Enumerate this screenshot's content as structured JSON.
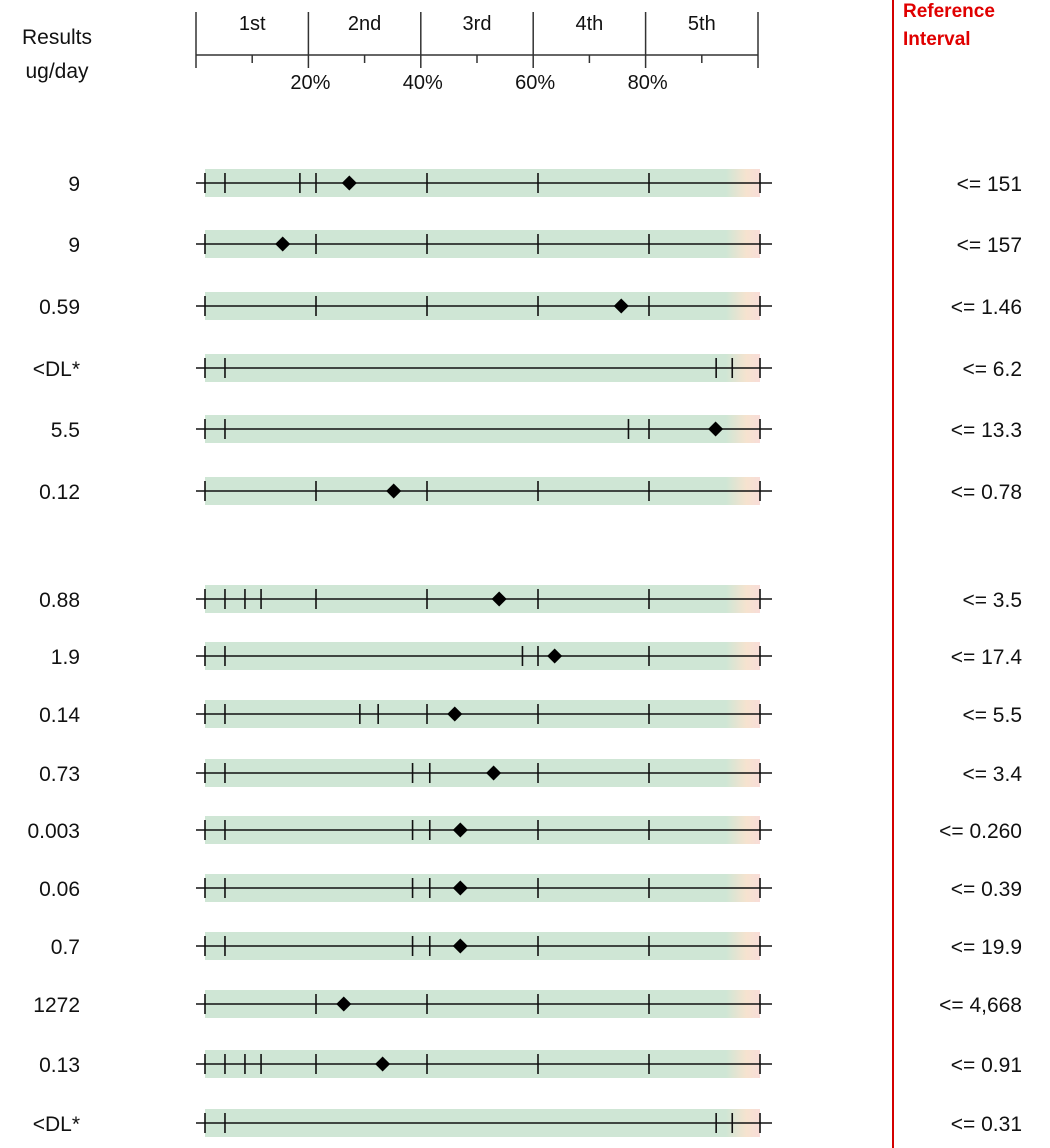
{
  "header": {
    "results_line1": "Results",
    "results_line2": "ug/day",
    "reference_line1": "Reference",
    "reference_line2": "Interval"
  },
  "colors": {
    "band": "#cfe6d5",
    "band_tail": "#f6e3cf",
    "reference_divider": "#d40000",
    "reference_text": "#e00000",
    "marker": "#000000"
  },
  "chart_data": {
    "type": "table",
    "quintile_labels": [
      "1st",
      "2nd",
      "3rd",
      "4th",
      "5th"
    ],
    "percentile_ticks": [
      {
        "label": "20%",
        "p": 20
      },
      {
        "label": "40%",
        "p": 40
      },
      {
        "label": "60%",
        "p": 60
      },
      {
        "label": "80%",
        "p": 80
      }
    ],
    "rows": [
      {
        "result": "9",
        "reference": "<= 151",
        "percentile": 26,
        "ticks": [
          0,
          3.6,
          17.1,
          20,
          40,
          60,
          80,
          100
        ]
      },
      {
        "result": "9",
        "reference": "<= 157",
        "percentile": 14,
        "ticks": [
          0,
          20,
          40,
          60,
          80,
          100
        ]
      },
      {
        "result": "0.59",
        "reference": "<= 1.46",
        "percentile": 75,
        "ticks": [
          0,
          20,
          40,
          60,
          80,
          100
        ]
      },
      {
        "result": "<DL*",
        "reference": "<= 6.2",
        "percentile": null,
        "ticks": [
          0,
          3.6,
          92.1,
          95,
          100
        ]
      },
      {
        "result": "5.5",
        "reference": "<= 13.3",
        "percentile": 92,
        "ticks": [
          0,
          3.6,
          76.3,
          80,
          100
        ]
      },
      {
        "result": "0.12",
        "reference": "<= 0.78",
        "percentile": 34,
        "ticks": [
          0,
          20,
          40,
          60,
          80,
          100
        ]
      },
      {
        "result": "0.88",
        "reference": "<= 3.5",
        "percentile": 53,
        "ticks": [
          0,
          3.6,
          7.2,
          10.1,
          20,
          40,
          60,
          80,
          100
        ]
      },
      {
        "result": "1.9",
        "reference": "<= 17.4",
        "percentile": 63,
        "ticks": [
          0,
          3.6,
          57.2,
          60,
          80,
          100
        ]
      },
      {
        "result": "0.14",
        "reference": "<= 5.5",
        "percentile": 45,
        "ticks": [
          0,
          3.6,
          27.9,
          31.2,
          40,
          60,
          80,
          100
        ]
      },
      {
        "result": "0.73",
        "reference": "<= 3.4",
        "percentile": 52,
        "ticks": [
          0,
          3.6,
          37.4,
          40.5,
          60,
          80,
          100
        ]
      },
      {
        "result": "0.003",
        "reference": "<= 0.260",
        "percentile": 46,
        "ticks": [
          0,
          3.6,
          37.4,
          40.5,
          60,
          80,
          100
        ]
      },
      {
        "result": "0.06",
        "reference": "<= 0.39",
        "percentile": 46,
        "ticks": [
          0,
          3.6,
          37.4,
          40.5,
          60,
          80,
          100
        ]
      },
      {
        "result": "0.7",
        "reference": "<= 19.9",
        "percentile": 46,
        "ticks": [
          0,
          3.6,
          37.4,
          40.5,
          60,
          80,
          100
        ]
      },
      {
        "result": "1272",
        "reference": "<= 4,668",
        "percentile": 25,
        "ticks": [
          0,
          20,
          40,
          60,
          80,
          100
        ]
      },
      {
        "result": "0.13",
        "reference": "<= 0.91",
        "percentile": 32,
        "ticks": [
          0,
          3.6,
          7.2,
          10.1,
          20,
          40,
          60,
          80,
          100
        ]
      },
      {
        "result": "<DL*",
        "reference": "<= 0.31",
        "percentile": null,
        "ticks": [
          0,
          3.6,
          92.1,
          95,
          100
        ]
      }
    ]
  }
}
